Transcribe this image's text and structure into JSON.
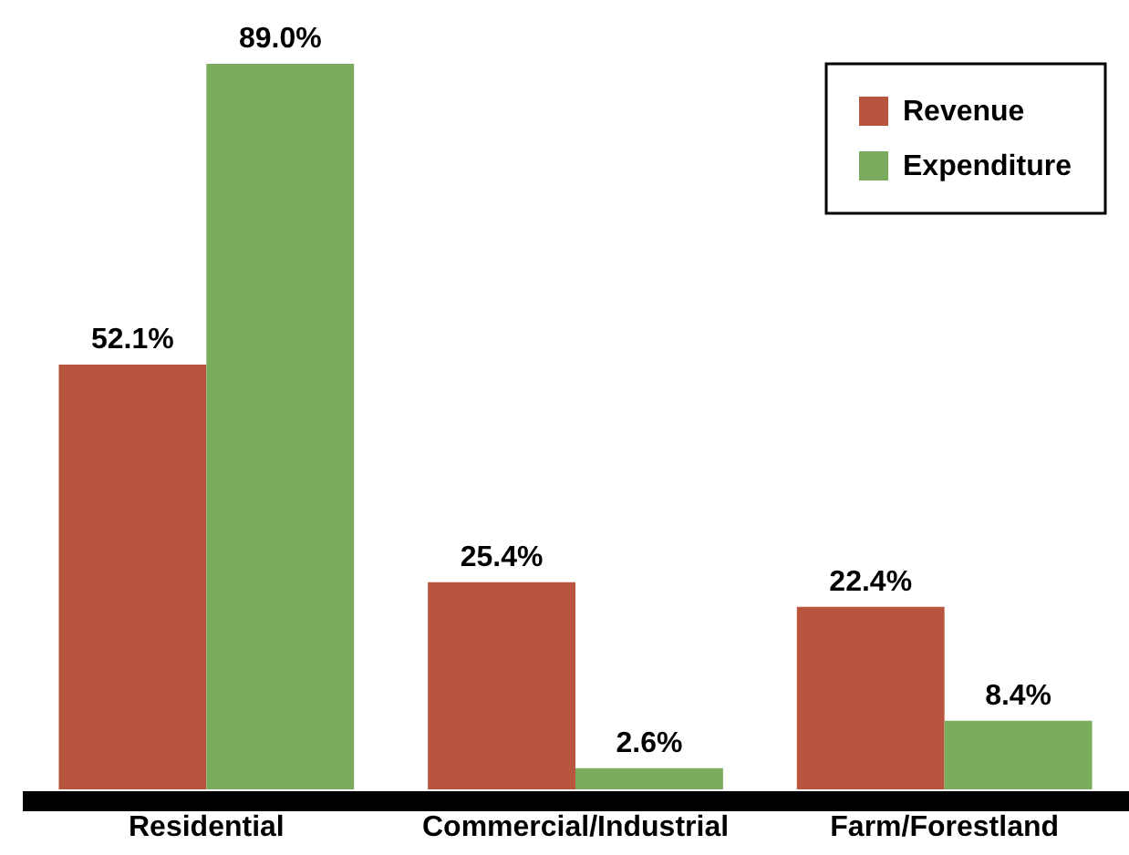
{
  "chart_data": {
    "type": "bar",
    "categories": [
      "Residential",
      "Commercial/Industrial",
      "Farm/Forestland"
    ],
    "series": [
      {
        "name": "Revenue",
        "color": "#b8553f",
        "values": [
          52.1,
          25.4,
          22.4
        ],
        "value_labels": [
          "52.1%",
          "25.4%",
          "22.4%"
        ]
      },
      {
        "name": "Expenditure",
        "color": "#7bab5d",
        "values": [
          89.0,
          2.6,
          8.4
        ],
        "value_labels": [
          "89.0%",
          "2.6%",
          "8.4%"
        ]
      }
    ],
    "legend": "top right"
  }
}
